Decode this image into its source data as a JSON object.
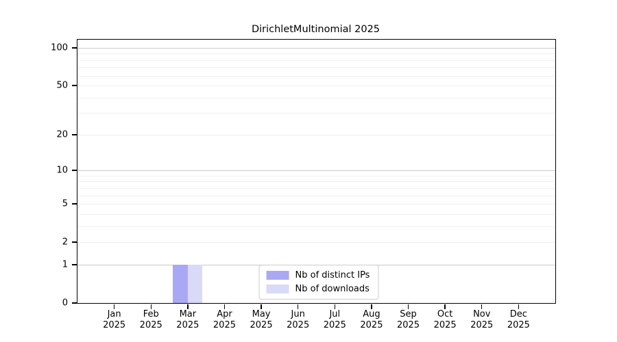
{
  "chart_data": {
    "type": "bar",
    "title": "DirichletMultinomial 2025",
    "x_tick_months": [
      "Jan",
      "Feb",
      "Mar",
      "Apr",
      "May",
      "Jun",
      "Jul",
      "Aug",
      "Sep",
      "Oct",
      "Nov",
      "Dec"
    ],
    "x_tick_year": "2025",
    "series": [
      {
        "name": "Nb of distinct IPs",
        "color": "#a9a9f3",
        "values": [
          0,
          0,
          1,
          0,
          0,
          0,
          0,
          0,
          0,
          0,
          0,
          0
        ]
      },
      {
        "name": "Nb of downloads",
        "color": "#d9d9f8",
        "values": [
          0,
          0,
          1,
          0,
          0,
          0,
          0,
          0,
          0,
          0,
          0,
          0
        ]
      }
    ],
    "yscale": "log1p",
    "ylim": [
      0,
      116
    ],
    "yticks": [
      0,
      1,
      2,
      5,
      10,
      20,
      50,
      100
    ],
    "minor_gridlines": [
      2,
      3,
      4,
      5,
      6,
      7,
      8,
      9,
      20,
      30,
      40,
      50,
      60,
      70,
      80,
      90
    ],
    "major_gridlines": [
      1,
      10,
      100
    ],
    "legend_position": "lower center",
    "grid_on": true,
    "colors": {
      "axis": "#000000",
      "major_grid": "#c8c8c8",
      "minor_grid": "#efefef",
      "background": "#ffffff"
    }
  }
}
